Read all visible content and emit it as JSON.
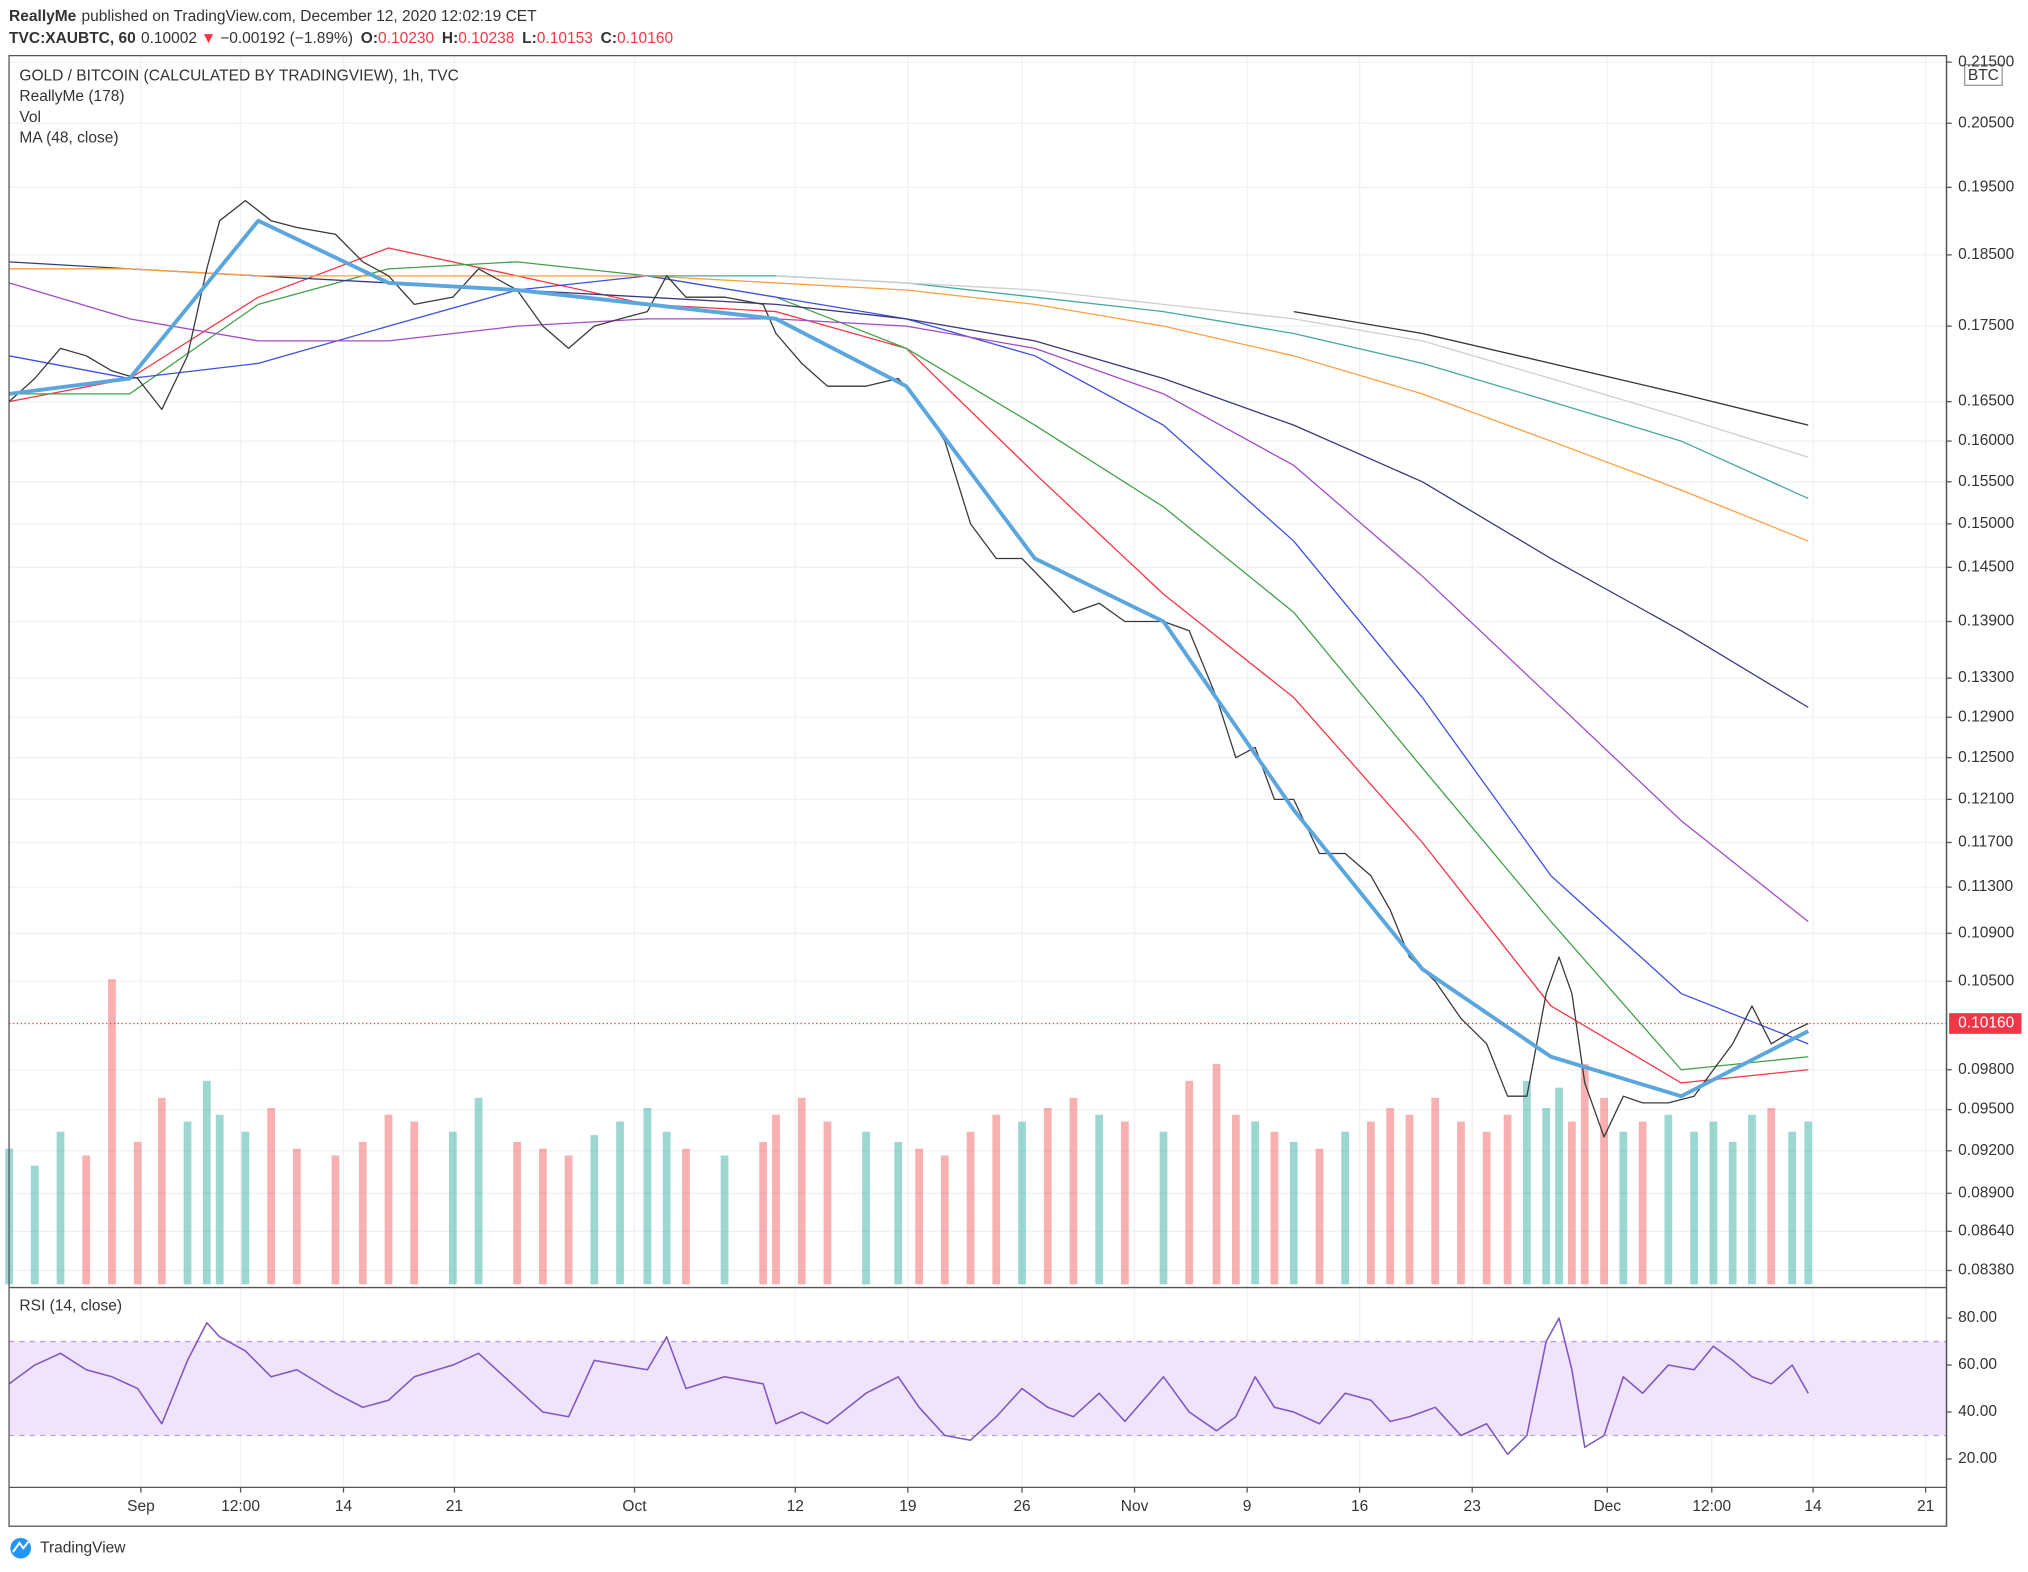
{
  "header": {
    "publisher": "ReallyMe",
    "published": "published on TradingView.com, December 12, 2020 12:02:19 CET",
    "symbol": "TVC:XAUBTC, 60",
    "last": "0.10002",
    "arrow": "▼",
    "change": "−0.00192 (−1.89%)",
    "ohlc": [
      {
        "label": "O:",
        "value": "0.10230"
      },
      {
        "label": "H:",
        "value": "0.10238"
      },
      {
        "label": "L:",
        "value": "0.10153"
      },
      {
        "label": "C:",
        "value": "0.10160"
      }
    ]
  },
  "footer": {
    "brand": "TradingView"
  },
  "chart_data": [
    {
      "type": "line",
      "title": "GOLD / BITCOIN (CALCULATED BY TRADINGVIEW), 1h, TVC",
      "currency": "BTC",
      "log_scale": true,
      "grid": true,
      "color": "#3a3a3a",
      "x": [
        -8.2,
        -6.6,
        -5,
        -3.4,
        -1.8,
        -0.2,
        1.3,
        2.9,
        4.1,
        4.9,
        6.5,
        8.1,
        9.7,
        12.1,
        13.8,
        15.4,
        17,
        19.4,
        21,
        23.4,
        25,
        26.6,
        28.2,
        29.8,
        31.5,
        32.7,
        33.9,
        36.3,
        38.7,
        39.5,
        41.1,
        42.7,
        45.1,
        47.1,
        48.4,
        50,
        51.6,
        53.2,
        54.8,
        56.4,
        58,
        59.6,
        61.2,
        63.6,
        65.2,
        66.9,
        68.1,
        69.3,
        70.5,
        71.7,
        73.3,
        74.9,
        76.5,
        77.7,
        78.9,
        80.5,
        82.1,
        83.7,
        85,
        86.2,
        87.4,
        88.2,
        89,
        89.8,
        91,
        92.2,
        93.4,
        95,
        96.6,
        97.8,
        99,
        100.2,
        101.4,
        102.7,
        103.7
      ],
      "values": [
        0.165,
        0.168,
        0.172,
        0.171,
        0.169,
        0.168,
        0.164,
        0.171,
        0.183,
        0.19,
        0.193,
        0.19,
        0.189,
        0.188,
        0.184,
        0.182,
        0.178,
        0.179,
        0.183,
        0.18,
        0.175,
        0.172,
        0.175,
        0.176,
        0.177,
        0.182,
        0.179,
        0.179,
        0.178,
        0.174,
        0.17,
        0.167,
        0.167,
        0.168,
        0.165,
        0.16,
        0.15,
        0.146,
        0.146,
        0.143,
        0.14,
        0.141,
        0.139,
        0.139,
        0.138,
        0.131,
        0.125,
        0.126,
        0.121,
        0.121,
        0.116,
        0.116,
        0.114,
        0.111,
        0.107,
        0.105,
        0.102,
        0.1,
        0.096,
        0.096,
        0.104,
        0.107,
        0.104,
        0.097,
        0.093,
        0.096,
        0.0955,
        0.0955,
        0.096,
        0.098,
        0.1,
        0.103,
        0.1,
        0.101,
        0.1016
      ],
      "volume": {
        "name": "Vol",
        "up_color": "#26a69a",
        "down_color": "#ef5350",
        "values": [
          40,
          35,
          45,
          38,
          90,
          42,
          55,
          48,
          60,
          50,
          45,
          52,
          40,
          38,
          42,
          50,
          48,
          45,
          55,
          42,
          40,
          38,
          44,
          48,
          52,
          45,
          40,
          38,
          42,
          50,
          55,
          48,
          45,
          42,
          40,
          38,
          45,
          50,
          48,
          52,
          55,
          50,
          48,
          45,
          60,
          65,
          50,
          48,
          45,
          42,
          40,
          45,
          48,
          52,
          50,
          55,
          48,
          45,
          50,
          60,
          52,
          58,
          48,
          65,
          55,
          45,
          48,
          50,
          45,
          48,
          42,
          50,
          52,
          45,
          48
        ]
      },
      "ma": {
        "name": "MA (48, close)",
        "color": "#5aa6dd",
        "x": [
          -8.2,
          -0.7,
          7.3,
          15.4,
          23.4,
          31.5,
          39.5,
          47.6,
          55.6,
          63.6,
          71.7,
          79.7,
          87.7,
          95.8,
          103.7
        ],
        "values": [
          0.166,
          0.168,
          0.19,
          0.181,
          0.18,
          0.178,
          0.176,
          0.167,
          0.146,
          0.139,
          0.12,
          0.106,
          0.099,
          0.096,
          0.101
        ]
      },
      "indicator": {
        "name": "ReallyMe (178)",
        "x": [
          -8.2,
          -0.7,
          7.3,
          15.4,
          23.4,
          31.5,
          39.5,
          47.6,
          55.6,
          63.6,
          71.7,
          79.7,
          87.7,
          95.8,
          103.7
        ],
        "series": [
          {
            "color": "#f23645",
            "values": [
              0.165,
              0.168,
              0.179,
              0.186,
              0.182,
              0.178,
              0.177,
              0.172,
              0.156,
              0.142,
              0.131,
              0.117,
              0.103,
              0.097,
              0.098
            ]
          },
          {
            "color": "#43a047",
            "values": [
              0.166,
              0.166,
              0.178,
              0.183,
              0.184,
              0.182,
              0.179,
              0.172,
              0.162,
              0.152,
              0.14,
              0.124,
              0.11,
              0.098,
              0.099
            ]
          },
          {
            "color": "#3d4fe0",
            "values": [
              0.171,
              0.168,
              0.17,
              0.175,
              0.18,
              0.182,
              0.179,
              0.176,
              0.171,
              0.162,
              0.148,
              0.131,
              0.114,
              0.104,
              0.1
            ]
          },
          {
            "color": "#a34bc4",
            "values": [
              0.181,
              0.176,
              0.173,
              0.173,
              0.175,
              0.176,
              0.176,
              0.175,
              0.172,
              0.166,
              0.157,
              0.144,
              0.131,
              0.119,
              0.11
            ]
          },
          {
            "color": "#3a3a7a",
            "values": [
              0.184,
              0.183,
              0.182,
              0.181,
              0.18,
              0.179,
              0.178,
              0.176,
              0.173,
              0.168,
              0.162,
              0.155,
              0.146,
              0.138,
              0.13
            ]
          },
          {
            "color": "#ff9f40",
            "values": [
              0.183,
              0.183,
              0.182,
              0.182,
              0.182,
              0.182,
              0.181,
              0.18,
              0.178,
              0.175,
              0.171,
              0.166,
              0.16,
              0.154,
              0.148
            ]
          },
          {
            "color": "#45a8a0",
            "values": [
              null,
              null,
              null,
              null,
              null,
              0.182,
              0.182,
              0.181,
              0.179,
              0.177,
              0.174,
              0.17,
              0.165,
              0.16,
              0.153
            ]
          },
          {
            "color": "#cfcfcf",
            "values": [
              null,
              null,
              null,
              null,
              null,
              null,
              0.182,
              0.181,
              0.18,
              0.178,
              0.176,
              0.173,
              0.168,
              0.163,
              0.158
            ]
          },
          {
            "color": "#333333",
            "values": [
              null,
              null,
              null,
              null,
              null,
              null,
              null,
              null,
              null,
              null,
              0.177,
              0.174,
              0.17,
              0.166,
              0.162
            ]
          }
        ]
      },
      "last_price": {
        "value": 0.1016,
        "label": "0.10160",
        "color": "#f23645"
      },
      "xlim": [
        -8.2,
        112.3
      ],
      "xticks": [
        {
          "value": 0,
          "label": "Sep"
        },
        {
          "value": 6.2,
          "label": "12:00"
        },
        {
          "value": 12.6,
          "label": "14"
        },
        {
          "value": 19.5,
          "label": "21"
        },
        {
          "value": 30.7,
          "label": "Oct"
        },
        {
          "value": 40.7,
          "label": "12"
        },
        {
          "value": 47.7,
          "label": "19"
        },
        {
          "value": 54.8,
          "label": "26"
        },
        {
          "value": 61.8,
          "label": "Nov"
        },
        {
          "value": 68.8,
          "label": "9"
        },
        {
          "value": 75.8,
          "label": "16"
        },
        {
          "value": 82.8,
          "label": "23"
        },
        {
          "value": 91.2,
          "label": "Dec"
        },
        {
          "value": 97.7,
          "label": "12:00"
        },
        {
          "value": 104,
          "label": "14"
        },
        {
          "value": 111,
          "label": "21"
        }
      ],
      "ylim": [
        0.0829,
        0.2161
      ],
      "yticks": [
        {
          "value": 0.215,
          "label": "0.21500"
        },
        {
          "value": 0.205,
          "label": "0.20500"
        },
        {
          "value": 0.195,
          "label": "0.19500"
        },
        {
          "value": 0.185,
          "label": "0.18500"
        },
        {
          "value": 0.175,
          "label": "0.17500"
        },
        {
          "value": 0.165,
          "label": "0.16500"
        },
        {
          "value": 0.16,
          "label": "0.16000"
        },
        {
          "value": 0.155,
          "label": "0.15500"
        },
        {
          "value": 0.15,
          "label": "0.15000"
        },
        {
          "value": 0.145,
          "label": "0.14500"
        },
        {
          "value": 0.139,
          "label": "0.13900"
        },
        {
          "value": 0.133,
          "label": "0.13300"
        },
        {
          "value": 0.129,
          "label": "0.12900"
        },
        {
          "value": 0.125,
          "label": "0.12500"
        },
        {
          "value": 0.121,
          "label": "0.12100"
        },
        {
          "value": 0.117,
          "label": "0.11700"
        },
        {
          "value": 0.113,
          "label": "0.11300"
        },
        {
          "value": 0.109,
          "label": "0.10900"
        },
        {
          "value": 0.105,
          "label": "0.10500"
        },
        {
          "value": 0.098,
          "label": "0.09800"
        },
        {
          "value": 0.095,
          "label": "0.09500"
        },
        {
          "value": 0.092,
          "label": "0.09200"
        },
        {
          "value": 0.089,
          "label": "0.08900"
        },
        {
          "value": 0.0864,
          "label": "0.08640"
        },
        {
          "value": 0.0838,
          "label": "0.08380"
        }
      ]
    },
    {
      "type": "line",
      "title": "RSI (14, close)",
      "color": "#7e57c2",
      "band": [
        30,
        70
      ],
      "band_color": "#f0e3fc",
      "x": [
        -8.2,
        -6.6,
        -5,
        -3.4,
        -1.8,
        -0.2,
        1.3,
        2.9,
        4.1,
        4.9,
        6.5,
        8.1,
        9.7,
        12.1,
        13.8,
        15.4,
        17,
        19.4,
        21,
        23.4,
        25,
        26.6,
        28.2,
        29.8,
        31.5,
        32.7,
        33.9,
        36.3,
        38.7,
        39.5,
        41.1,
        42.7,
        45.1,
        47.1,
        48.4,
        50,
        51.6,
        53.2,
        54.8,
        56.4,
        58,
        59.6,
        61.2,
        63.6,
        65.2,
        66.9,
        68.1,
        69.3,
        70.5,
        71.7,
        73.3,
        74.9,
        76.5,
        77.7,
        78.9,
        80.5,
        82.1,
        83.7,
        85,
        86.2,
        87.4,
        88.2,
        89,
        89.8,
        91,
        92.2,
        93.4,
        95,
        96.6,
        97.8,
        99,
        100.2,
        101.4,
        102.7,
        103.7
      ],
      "values": [
        52,
        60,
        65,
        58,
        55,
        50,
        35,
        62,
        78,
        72,
        66,
        55,
        58,
        48,
        42,
        45,
        55,
        60,
        65,
        50,
        40,
        38,
        62,
        60,
        58,
        72,
        50,
        55,
        52,
        35,
        40,
        35,
        48,
        55,
        42,
        30,
        28,
        38,
        50,
        42,
        38,
        48,
        36,
        55,
        40,
        32,
        38,
        55,
        42,
        40,
        35,
        48,
        45,
        36,
        38,
        42,
        30,
        35,
        22,
        30,
        70,
        80,
        58,
        25,
        30,
        55,
        48,
        60,
        58,
        68,
        62,
        55,
        52,
        60,
        48
      ],
      "ylim": [
        7.9,
        91.6
      ],
      "yticks": [
        {
          "value": 80,
          "label": "80.00"
        },
        {
          "value": 60,
          "label": "60.00"
        },
        {
          "value": 40,
          "label": "40.00"
        },
        {
          "value": 20,
          "label": "20.00"
        }
      ]
    }
  ]
}
